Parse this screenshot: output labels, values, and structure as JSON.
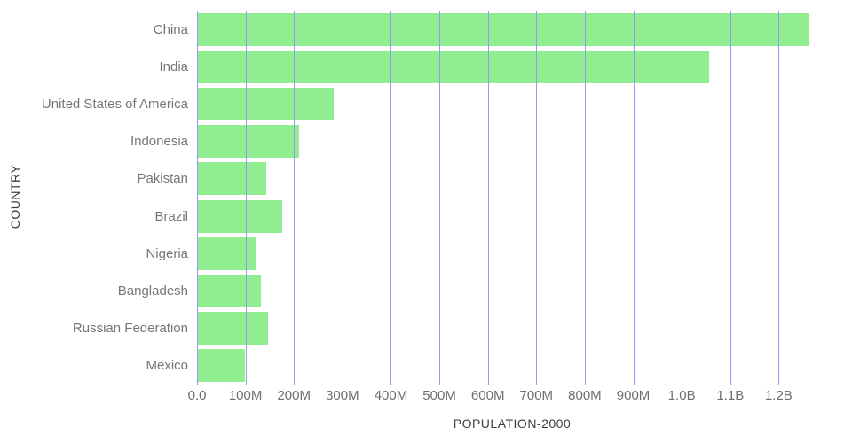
{
  "chart_data": {
    "type": "bar",
    "orientation": "horizontal",
    "title": "",
    "xlabel": "POPULATION-2000",
    "ylabel": "COUNTRY",
    "categories": [
      "China",
      "India",
      "United States of America",
      "Indonesia",
      "Pakistan",
      "Brazil",
      "Nigeria",
      "Bangladesh",
      "Russian Federation",
      "Mexico"
    ],
    "values_millions": [
      1263,
      1057,
      282,
      211,
      142,
      175,
      122,
      131,
      146,
      99
    ],
    "xlim_millions": [
      0,
      1300
    ],
    "x_ticks": [
      {
        "value": 0,
        "label": "0.0"
      },
      {
        "value": 100,
        "label": "100M"
      },
      {
        "value": 200,
        "label": "200M"
      },
      {
        "value": 300,
        "label": "300M"
      },
      {
        "value": 400,
        "label": "400M"
      },
      {
        "value": 500,
        "label": "500M"
      },
      {
        "value": 600,
        "label": "600M"
      },
      {
        "value": 700,
        "label": "700M"
      },
      {
        "value": 800,
        "label": "800M"
      },
      {
        "value": 900,
        "label": "900M"
      },
      {
        "value": 1000,
        "label": "1.0B"
      },
      {
        "value": 1100,
        "label": "1.1B"
      },
      {
        "value": 1200,
        "label": "1.2B"
      }
    ],
    "grid": "vertical",
    "legend": "none",
    "colors": {
      "bar": "#90ee90",
      "gridline": "#9d95f5",
      "category_text": "#7a7575",
      "tick_text": "#6e6e6e",
      "axis_text": "#3d3d3d"
    }
  }
}
